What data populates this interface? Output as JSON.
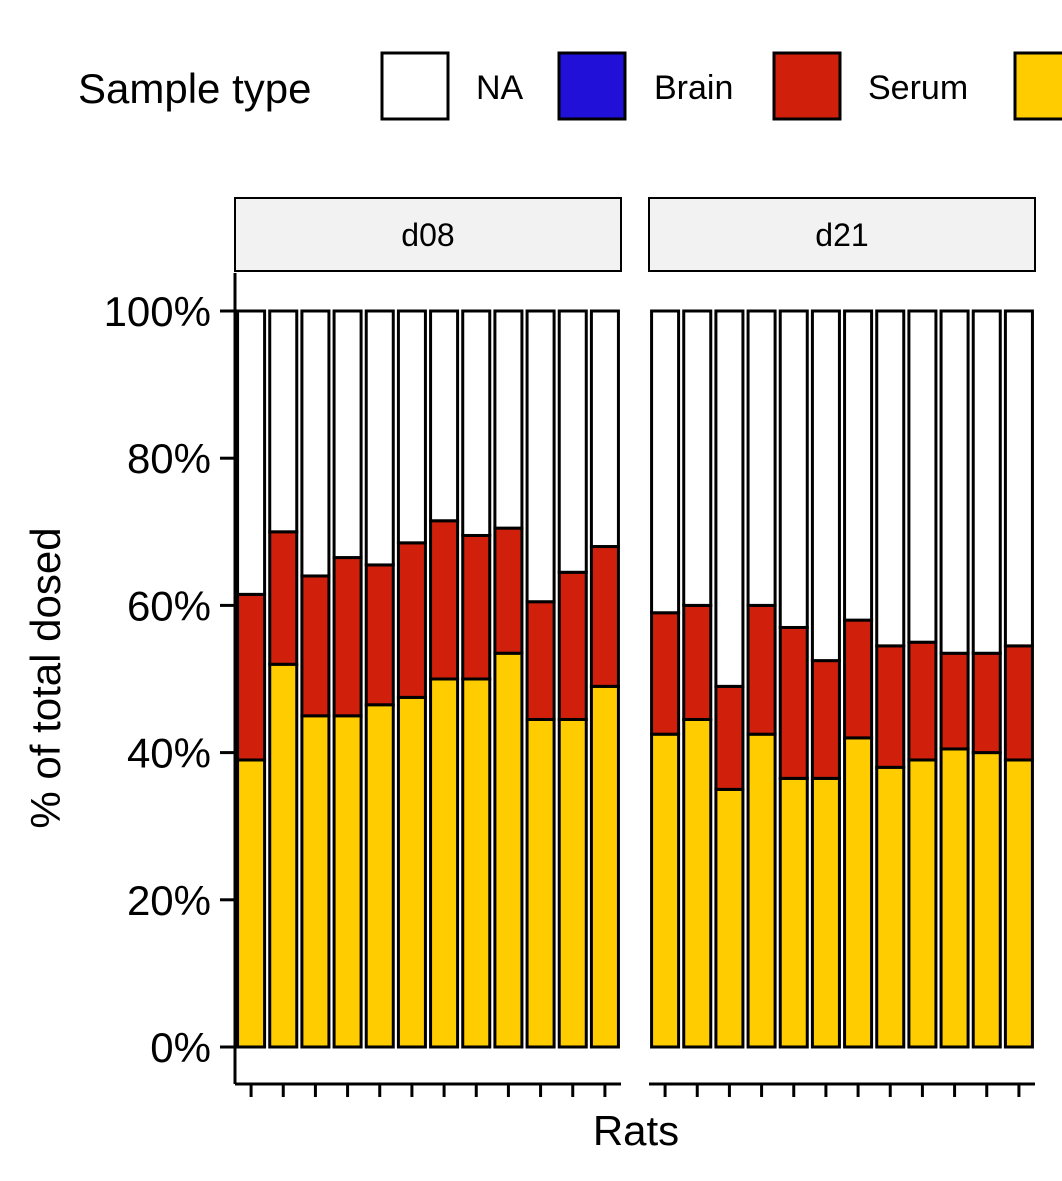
{
  "legend": {
    "title": "Sample type",
    "entries": [
      {
        "label": "NA",
        "color": "#FFFFFF"
      },
      {
        "label": "Brain",
        "color": "#2010D8"
      },
      {
        "label": "Serum",
        "color": "#D0200C"
      },
      {
        "label": "",
        "color": "#FFCC00"
      }
    ]
  },
  "chart_data": {
    "type": "bar",
    "stacked": true,
    "xlabel": "Rats",
    "ylabel": "% of total dosed",
    "ylim": [
      0,
      100
    ],
    "yticks": [
      "0%",
      "20%",
      "40%",
      "60%",
      "80%",
      "100%"
    ],
    "legend_position": "top",
    "facets": [
      {
        "label": "d08",
        "bars": [
          {
            "yellow": 39.0,
            "serum": 22.5,
            "na": 38.5
          },
          {
            "yellow": 52.0,
            "serum": 18.0,
            "na": 30.0
          },
          {
            "yellow": 45.0,
            "serum": 19.0,
            "na": 36.0
          },
          {
            "yellow": 45.0,
            "serum": 21.5,
            "na": 33.5
          },
          {
            "yellow": 46.5,
            "serum": 19.0,
            "na": 34.5
          },
          {
            "yellow": 47.5,
            "serum": 21.0,
            "na": 31.5
          },
          {
            "yellow": 50.0,
            "serum": 21.5,
            "na": 28.5
          },
          {
            "yellow": 50.0,
            "serum": 19.5,
            "na": 30.5
          },
          {
            "yellow": 53.5,
            "serum": 17.0,
            "na": 29.5
          },
          {
            "yellow": 44.5,
            "serum": 16.0,
            "na": 39.5
          },
          {
            "yellow": 44.5,
            "serum": 20.0,
            "na": 35.5
          },
          {
            "yellow": 49.0,
            "serum": 19.0,
            "na": 32.0
          }
        ]
      },
      {
        "label": "d21",
        "bars": [
          {
            "yellow": 42.5,
            "serum": 16.5,
            "na": 41.0
          },
          {
            "yellow": 44.5,
            "serum": 15.5,
            "na": 40.0
          },
          {
            "yellow": 35.0,
            "serum": 14.0,
            "na": 51.0
          },
          {
            "yellow": 42.5,
            "serum": 17.5,
            "na": 40.0
          },
          {
            "yellow": 36.5,
            "serum": 20.5,
            "na": 43.0
          },
          {
            "yellow": 36.5,
            "serum": 16.0,
            "na": 47.5
          },
          {
            "yellow": 42.0,
            "serum": 16.0,
            "na": 42.0
          },
          {
            "yellow": 38.0,
            "serum": 16.5,
            "na": 45.5
          },
          {
            "yellow": 39.0,
            "serum": 16.0,
            "na": 45.0
          },
          {
            "yellow": 40.5,
            "serum": 13.0,
            "na": 46.5
          },
          {
            "yellow": 40.0,
            "serum": 13.5,
            "na": 46.5
          },
          {
            "yellow": 39.0,
            "serum": 15.5,
            "na": 45.5
          }
        ]
      }
    ]
  }
}
